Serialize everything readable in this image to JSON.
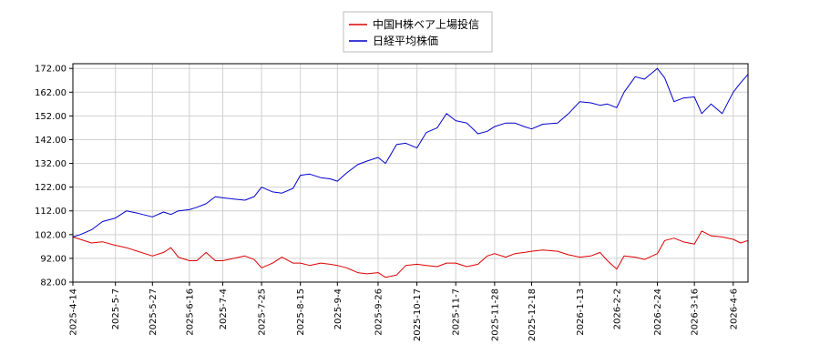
{
  "chart_data": {
    "type": "line",
    "title": "",
    "xlabel": "",
    "ylabel": "",
    "ylim": [
      82.0,
      174.0
    ],
    "yticks": [
      "82.00",
      "92.00",
      "102.00",
      "112.00",
      "122.00",
      "132.00",
      "142.00",
      "152.00",
      "162.00",
      "172.00"
    ],
    "grid": true,
    "legend_position": "top-center",
    "xticks": [
      "2025-4-14",
      "2025-5-7",
      "2025-5-27",
      "2025-6-16",
      "2025-7-4",
      "2025-7-25",
      "2025-8-15",
      "2025-9-4",
      "2025-9-26",
      "2025-10-17",
      "2025-11-7",
      "2025-11-28",
      "2025-12-18",
      "2026-1-13",
      "2026-2-2",
      "2026-2-24",
      "2026-3-16",
      "2026-4-6"
    ],
    "series": [
      {
        "name": "中国H株ベア上場投信",
        "color": "#dd0000",
        "points": [
          [
            "2025-4-14",
            101.0
          ],
          [
            "2025-4-18",
            100.0
          ],
          [
            "2025-4-24",
            98.5
          ],
          [
            "2025-4-30",
            99.0
          ],
          [
            "2025-5-7",
            97.5
          ],
          [
            "2025-5-13",
            96.5
          ],
          [
            "2025-5-19",
            95.0
          ],
          [
            "2025-5-27",
            93.0
          ],
          [
            "2025-6-2",
            94.5
          ],
          [
            "2025-6-6",
            96.5
          ],
          [
            "2025-6-10",
            92.5
          ],
          [
            "2025-6-16",
            91.0
          ],
          [
            "2025-6-20",
            91.0
          ],
          [
            "2025-6-25",
            94.5
          ],
          [
            "2025-6-30",
            91.0
          ],
          [
            "2025-7-4",
            91.0
          ],
          [
            "2025-7-10",
            92.0
          ],
          [
            "2025-7-16",
            93.0
          ],
          [
            "2025-7-21",
            91.5
          ],
          [
            "2025-7-25",
            88.0
          ],
          [
            "2025-7-31",
            90.0
          ],
          [
            "2025-8-5",
            92.5
          ],
          [
            "2025-8-11",
            90.0
          ],
          [
            "2025-8-15",
            90.0
          ],
          [
            "2025-8-20",
            89.0
          ],
          [
            "2025-8-26",
            90.0
          ],
          [
            "2025-8-31",
            89.5
          ],
          [
            "2025-9-4",
            89.0
          ],
          [
            "2025-9-9",
            88.0
          ],
          [
            "2025-9-15",
            86.0
          ],
          [
            "2025-9-20",
            85.5
          ],
          [
            "2025-9-26",
            86.0
          ],
          [
            "2025-9-30",
            84.0
          ],
          [
            "2025-10-6",
            85.0
          ],
          [
            "2025-10-11",
            89.0
          ],
          [
            "2025-10-17",
            89.5
          ],
          [
            "2025-10-22",
            89.0
          ],
          [
            "2025-10-28",
            88.5
          ],
          [
            "2025-11-2",
            90.0
          ],
          [
            "2025-11-7",
            90.0
          ],
          [
            "2025-11-13",
            88.5
          ],
          [
            "2025-11-19",
            89.5
          ],
          [
            "2025-11-24",
            93.0
          ],
          [
            "2025-11-28",
            94.0
          ],
          [
            "2025-12-4",
            92.5
          ],
          [
            "2025-12-9",
            94.0
          ],
          [
            "2025-12-14",
            94.5
          ],
          [
            "2025-12-18",
            95.0
          ],
          [
            "2025-12-24",
            95.5
          ],
          [
            "2026-1-1",
            95.0
          ],
          [
            "2026-1-7",
            93.5
          ],
          [
            "2026-1-13",
            92.5
          ],
          [
            "2026-1-19",
            93.0
          ],
          [
            "2026-1-24",
            94.5
          ],
          [
            "2026-1-28",
            91.0
          ],
          [
            "2026-2-2",
            87.5
          ],
          [
            "2026-2-6",
            93.0
          ],
          [
            "2026-2-12",
            92.5
          ],
          [
            "2026-2-17",
            91.5
          ],
          [
            "2026-2-24",
            94.0
          ],
          [
            "2026-2-28",
            99.5
          ],
          [
            "2026-3-5",
            100.5
          ],
          [
            "2026-3-10",
            99.0
          ],
          [
            "2026-3-16",
            98.0
          ],
          [
            "2026-3-20",
            103.5
          ],
          [
            "2026-3-25",
            101.5
          ],
          [
            "2026-3-31",
            101.0
          ],
          [
            "2026-4-6",
            100.0
          ],
          [
            "2026-4-10",
            98.5
          ],
          [
            "2026-4-14",
            99.5
          ]
        ]
      },
      {
        "name": "日経平均株価",
        "color": "#0000cc",
        "points": [
          [
            "2025-4-14",
            101.0
          ],
          [
            "2025-4-18",
            102.0
          ],
          [
            "2025-4-24",
            104.0
          ],
          [
            "2025-4-30",
            107.5
          ],
          [
            "2025-5-7",
            109.0
          ],
          [
            "2025-5-13",
            112.0
          ],
          [
            "2025-5-19",
            111.0
          ],
          [
            "2025-5-27",
            109.5
          ],
          [
            "2025-6-2",
            111.5
          ],
          [
            "2025-6-6",
            110.5
          ],
          [
            "2025-6-10",
            112.0
          ],
          [
            "2025-6-16",
            112.5
          ],
          [
            "2025-6-20",
            113.5
          ],
          [
            "2025-6-25",
            115.0
          ],
          [
            "2025-6-30",
            118.0
          ],
          [
            "2025-7-4",
            117.5
          ],
          [
            "2025-7-10",
            117.0
          ],
          [
            "2025-7-16",
            116.5
          ],
          [
            "2025-7-21",
            118.0
          ],
          [
            "2025-7-25",
            122.0
          ],
          [
            "2025-7-31",
            120.0
          ],
          [
            "2025-8-5",
            119.5
          ],
          [
            "2025-8-11",
            121.5
          ],
          [
            "2025-8-15",
            127.0
          ],
          [
            "2025-8-20",
            127.5
          ],
          [
            "2025-8-26",
            126.0
          ],
          [
            "2025-8-31",
            125.5
          ],
          [
            "2025-9-4",
            124.5
          ],
          [
            "2025-9-9",
            128.0
          ],
          [
            "2025-9-15",
            131.5
          ],
          [
            "2025-9-20",
            133.0
          ],
          [
            "2025-9-26",
            134.5
          ],
          [
            "2025-9-30",
            132.0
          ],
          [
            "2025-10-6",
            140.0
          ],
          [
            "2025-10-11",
            140.5
          ],
          [
            "2025-10-17",
            138.5
          ],
          [
            "2025-10-22",
            145.0
          ],
          [
            "2025-10-28",
            147.0
          ],
          [
            "2025-11-2",
            153.0
          ],
          [
            "2025-11-7",
            150.0
          ],
          [
            "2025-11-13",
            149.0
          ],
          [
            "2025-11-19",
            144.5
          ],
          [
            "2025-11-24",
            145.5
          ],
          [
            "2025-11-28",
            147.5
          ],
          [
            "2025-12-4",
            149.0
          ],
          [
            "2025-12-9",
            149.0
          ],
          [
            "2025-12-14",
            147.5
          ],
          [
            "2025-12-18",
            146.5
          ],
          [
            "2025-12-24",
            148.5
          ],
          [
            "2026-1-1",
            149.0
          ],
          [
            "2026-1-7",
            153.0
          ],
          [
            "2026-1-13",
            158.0
          ],
          [
            "2026-1-19",
            157.5
          ],
          [
            "2026-1-24",
            156.5
          ],
          [
            "2026-1-28",
            157.0
          ],
          [
            "2026-2-2",
            155.5
          ],
          [
            "2026-2-6",
            162.0
          ],
          [
            "2026-2-12",
            168.5
          ],
          [
            "2026-2-17",
            167.5
          ],
          [
            "2026-2-24",
            172.0
          ],
          [
            "2026-2-28",
            168.0
          ],
          [
            "2026-3-5",
            158.0
          ],
          [
            "2026-3-10",
            159.5
          ],
          [
            "2026-3-16",
            160.0
          ],
          [
            "2026-3-20",
            153.0
          ],
          [
            "2026-3-25",
            157.0
          ],
          [
            "2026-3-31",
            153.0
          ],
          [
            "2026-4-6",
            162.0
          ],
          [
            "2026-4-10",
            166.0
          ],
          [
            "2026-4-14",
            169.5
          ]
        ]
      }
    ]
  }
}
